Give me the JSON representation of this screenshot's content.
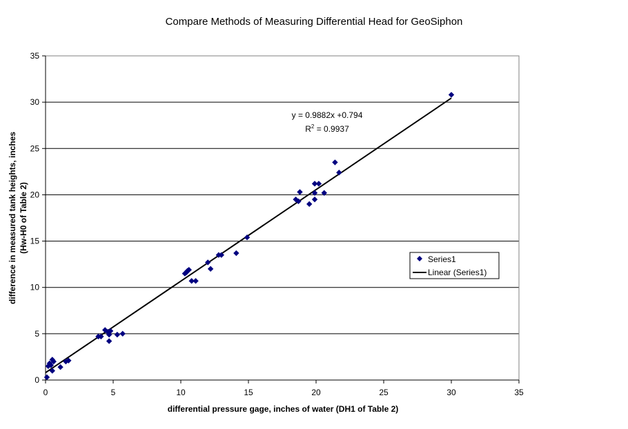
{
  "chart_data": {
    "type": "scatter",
    "title": "Compare Methods of Measuring Differential Head for GeoSiphon",
    "xlabel": "differential pressure gage, inches of water (DH1 of Table 2)",
    "ylabel_lines": [
      "difference in measured tank heights, inches",
      "(Hw-H0 of Table 2)"
    ],
    "xlim": [
      0,
      35
    ],
    "ylim": [
      0,
      35
    ],
    "xticks": [
      "0",
      "5",
      "10",
      "15",
      "20",
      "25",
      "30",
      "35"
    ],
    "yticks": [
      "0",
      "5",
      "10",
      "15",
      "20",
      "25",
      "30",
      "35"
    ],
    "grid": "horizontal major gridlines",
    "legend_position": "right",
    "series": [
      {
        "name": "Series1",
        "color": "#000080",
        "marker": "diamond",
        "points": [
          [
            0.1,
            0.3
          ],
          [
            0.2,
            1.5
          ],
          [
            0.3,
            1.8
          ],
          [
            0.4,
            1.6
          ],
          [
            0.5,
            2.2
          ],
          [
            0.6,
            2.0
          ],
          [
            0.5,
            1.0
          ],
          [
            1.1,
            1.4
          ],
          [
            1.5,
            2.0
          ],
          [
            1.7,
            2.1
          ],
          [
            3.9,
            4.7
          ],
          [
            4.1,
            4.7
          ],
          [
            4.4,
            5.4
          ],
          [
            4.6,
            5.2
          ],
          [
            4.7,
            4.9
          ],
          [
            4.8,
            5.3
          ],
          [
            4.7,
            4.2
          ],
          [
            5.3,
            4.9
          ],
          [
            5.7,
            5.0
          ],
          [
            10.3,
            11.5
          ],
          [
            10.4,
            11.6
          ],
          [
            10.5,
            11.8
          ],
          [
            10.6,
            11.9
          ],
          [
            10.8,
            10.7
          ],
          [
            11.1,
            10.7
          ],
          [
            12.0,
            12.7
          ],
          [
            12.2,
            12.0
          ],
          [
            12.8,
            13.5
          ],
          [
            13.0,
            13.5
          ],
          [
            14.1,
            13.7
          ],
          [
            14.9,
            15.4
          ],
          [
            18.5,
            19.5
          ],
          [
            18.7,
            19.3
          ],
          [
            18.8,
            20.3
          ],
          [
            19.5,
            19.0
          ],
          [
            19.9,
            20.2
          ],
          [
            19.9,
            21.2
          ],
          [
            19.9,
            19.5
          ],
          [
            20.2,
            21.2
          ],
          [
            20.6,
            20.2
          ],
          [
            21.4,
            23.5
          ],
          [
            21.7,
            22.4
          ],
          [
            30.0,
            30.8
          ]
        ]
      }
    ],
    "trendline": {
      "name": "Linear (Series1)",
      "color": "#000000",
      "slope": 0.9882,
      "intercept": 0.794,
      "x_range": [
        0,
        30
      ]
    },
    "annotation": {
      "equation": "y = 0.9882x +0.794",
      "r2_label": "R",
      "r2_sup": "2",
      "r2_value": " = 0.9937"
    }
  }
}
